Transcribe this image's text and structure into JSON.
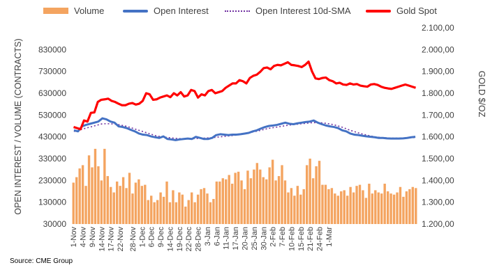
{
  "source": "Source: CME Group",
  "legend": [
    {
      "label": "Volume",
      "style": "bar",
      "color": "#F4A460"
    },
    {
      "label": "Open Interest",
      "style": "line",
      "color": "#4472C4"
    },
    {
      "label": "Open Interest 10d-SMA",
      "style": "dotted",
      "color": "#7030A0"
    },
    {
      "label": "Gold Spot",
      "style": "line-thick",
      "color": "#FF0000"
    }
  ],
  "chart_data": {
    "type": "bar",
    "title": "",
    "ylabel": "OPEN INTEREST / VOLUME (CONTRACTS)",
    "y2label": "GOLD $/OZ",
    "ylim": [
      30000,
      930000
    ],
    "y2lim": [
      1200,
      2100
    ],
    "yticks": [
      "30000",
      "130000",
      "230000",
      "330000",
      "430000",
      "530000",
      "630000",
      "730000",
      "830000"
    ],
    "y2ticks": [
      "1.200,00",
      "1.300,00",
      "1.400,00",
      "1.500,00",
      "1.600,00",
      "1.700,00",
      "1.800,00",
      "1.900,00",
      "2.000,00",
      "2.100,00"
    ],
    "xticks": [
      {
        "label": "1-Nov",
        "i": 0
      },
      {
        "label": "4-Nov",
        "i": 3
      },
      {
        "label": "9-Nov",
        "i": 6
      },
      {
        "label": "14-Nov",
        "i": 9
      },
      {
        "label": "17-Nov",
        "i": 12
      },
      {
        "label": "22-Nov",
        "i": 15
      },
      {
        "label": "28-Nov",
        "i": 19
      },
      {
        "label": "1-Dec",
        "i": 22
      },
      {
        "label": "6-Dec",
        "i": 25
      },
      {
        "label": "9-Dec",
        "i": 28
      },
      {
        "label": "14-Dec",
        "i": 31
      },
      {
        "label": "19-Dec",
        "i": 34
      },
      {
        "label": "22-Dec",
        "i": 37
      },
      {
        "label": "28-Dec",
        "i": 40
      },
      {
        "label": "3-Jan",
        "i": 43
      },
      {
        "label": "6-Jan",
        "i": 46
      },
      {
        "label": "11-Jan",
        "i": 49
      },
      {
        "label": "17-Jan",
        "i": 52
      },
      {
        "label": "20-Jan",
        "i": 55
      },
      {
        "label": "25-Jan",
        "i": 58
      },
      {
        "label": "30-Jan",
        "i": 61
      },
      {
        "label": "2-Feb",
        "i": 64
      },
      {
        "label": "7-Feb",
        "i": 67
      },
      {
        "label": "10-Feb",
        "i": 70
      },
      {
        "label": "15-Feb",
        "i": 73
      },
      {
        "label": "21-Feb",
        "i": 76
      },
      {
        "label": "24-Feb",
        "i": 79
      },
      {
        "label": "1-Mar",
        "i": 82
      }
    ],
    "series": [
      {
        "name": "Volume",
        "type": "bar",
        "axis": "left",
        "values": [
          220000,
          245000,
          285000,
          300000,
          205000,
          345000,
          290000,
          375000,
          295000,
          230000,
          375000,
          250000,
          200000,
          175000,
          225000,
          205000,
          245000,
          195000,
          265000,
          170000,
          220000,
          235000,
          205000,
          210000,
          140000,
          160000,
          130000,
          140000,
          175000,
          155000,
          225000,
          130000,
          185000,
          130000,
          175000,
          165000,
          110000,
          140000,
          175000,
          130000,
          165000,
          190000,
          195000,
          170000,
          130000,
          145000,
          225000,
          225000,
          240000,
          235000,
          255000,
          215000,
          265000,
          270000,
          230000,
          190000,
          275000,
          240000,
          280000,
          310000,
          280000,
          245000,
          235000,
          290000,
          325000,
          230000,
          250000,
          300000,
          230000,
          175000,
          195000,
          160000,
          205000,
          165000,
          190000,
          300000,
          330000,
          240000,
          295000,
          320000,
          210000,
          210000,
          190000,
          195000,
          170000,
          160000,
          180000,
          185000,
          160000,
          200000,
          175000,
          205000,
          210000,
          185000,
          150000,
          215000,
          170000,
          185000,
          175000,
          170000,
          215000,
          180000,
          170000,
          165000,
          175000,
          200000,
          155000,
          180000,
          190000,
          200000,
          195000
        ]
      },
      {
        "name": "Open Interest",
        "type": "line",
        "axis": "left",
        "values": [
          460000,
          455000,
          478000,
          485000,
          490000,
          495000,
          500000,
          515000,
          510000,
          500000,
          495000,
          478000,
          475000,
          470000,
          462000,
          455000,
          445000,
          440000,
          438000,
          432000,
          428000,
          425000,
          432000,
          420000,
          418000,
          415000,
          418000,
          420000,
          422000,
          420000,
          430000,
          425000,
          420000,
          420000,
          425000,
          438000,
          442000,
          440000,
          438000,
          440000,
          440000,
          442000,
          445000,
          448000,
          455000,
          460000,
          468000,
          475000,
          480000,
          482000,
          485000,
          490000,
          495000,
          490000,
          488000,
          492000,
          495000,
          498000,
          500000,
          505000,
          495000,
          488000,
          482000,
          478000,
          475000,
          470000,
          460000,
          455000,
          445000,
          440000,
          438000,
          435000,
          432000,
          430000,
          428000,
          425000,
          425000,
          423000,
          422000,
          422000,
          422000,
          423000,
          425000,
          428000,
          430000
        ]
      },
      {
        "name": "Open Interest 10d-SMA",
        "type": "line",
        "axis": "left",
        "values": [
          455000,
          458000,
          465000,
          470000,
          475000,
          480000,
          485000,
          490000,
          490000,
          490000,
          488000,
          486000,
          482000,
          478000,
          472000,
          466000,
          460000,
          454000,
          448000,
          442000,
          436000,
          432000,
          430000,
          427000,
          425000,
          423000,
          422000,
          421000,
          421000,
          421000,
          422000,
          423000,
          424000,
          425000,
          426000,
          428000,
          430000,
          432000,
          434000,
          436000,
          438000,
          440000,
          444000,
          448000,
          452000,
          456000,
          460000,
          465000,
          469000,
          472000,
          475000,
          478000,
          481000,
          484000,
          486000,
          488000,
          490000,
          492000,
          494000,
          495000,
          495000,
          494000,
          492000,
          489000,
          485000,
          480000,
          474000,
          467000,
          460000,
          454000,
          448000,
          443000,
          438000,
          434000,
          430000,
          428000,
          426000,
          425000,
          424000,
          424000,
          424000,
          424000,
          425000,
          426000,
          427000
        ]
      },
      {
        "name": "Gold Spot",
        "type": "line",
        "axis": "right",
        "values": [
          1645,
          1640,
          1635,
          1675,
          1670,
          1710,
          1712,
          1760,
          1770,
          1772,
          1775,
          1765,
          1760,
          1752,
          1745,
          1745,
          1752,
          1755,
          1748,
          1752,
          1765,
          1800,
          1795,
          1770,
          1772,
          1780,
          1785,
          1790,
          1782,
          1800,
          1790,
          1805,
          1785,
          1790,
          1815,
          1810,
          1780,
          1795,
          1790,
          1810,
          1815,
          1800,
          1805,
          1810,
          1825,
          1835,
          1845,
          1845,
          1860,
          1855,
          1845,
          1870,
          1880,
          1885,
          1898,
          1915,
          1918,
          1910,
          1925,
          1930,
          1928,
          1935,
          1942,
          1930,
          1928,
          1925,
          1920,
          1930,
          1945,
          1900,
          1868,
          1865,
          1870,
          1872,
          1860,
          1855,
          1845,
          1848,
          1840,
          1838,
          1845,
          1840,
          1842,
          1835,
          1832,
          1830,
          1840,
          1842,
          1838,
          1830,
          1825,
          1822,
          1820,
          1825,
          1830,
          1835,
          1840,
          1835,
          1830,
          1825
        ]
      }
    ],
    "grid": false,
    "legend_position": "top"
  }
}
